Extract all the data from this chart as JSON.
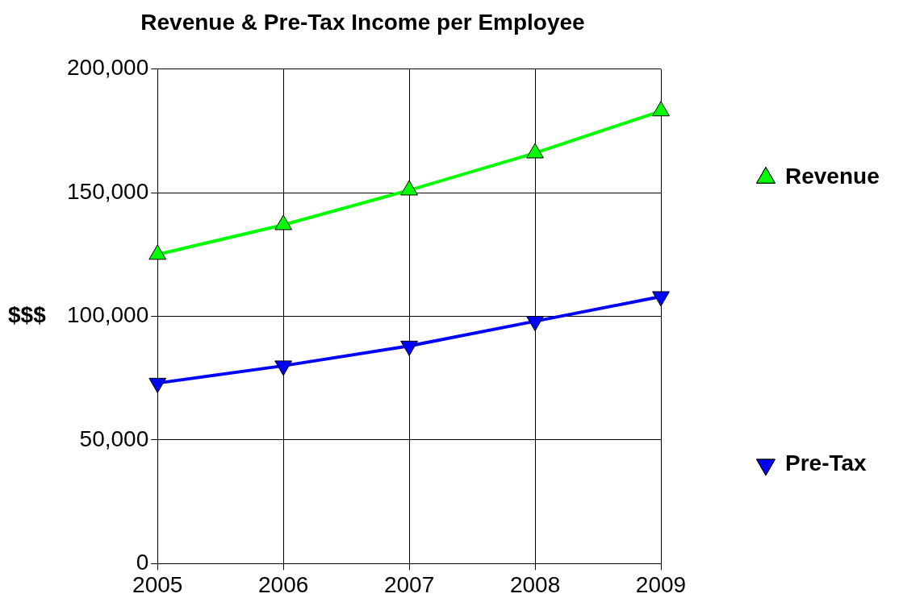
{
  "chart_data": {
    "type": "line",
    "title": "Revenue & Pre-Tax Income per Employee",
    "ylabel": "$$$",
    "x": [
      2005,
      2006,
      2007,
      2008,
      2009
    ],
    "series": [
      {
        "name": "Revenue",
        "color": "#00ff00",
        "marker": "triangle",
        "values": [
          125000,
          137000,
          151000,
          166000,
          183000
        ]
      },
      {
        "name": "Pre-Tax",
        "color": "#0000ff",
        "marker": "triangle-down",
        "values": [
          73000,
          80000,
          88000,
          98000,
          108000
        ]
      }
    ],
    "xlim": [
      2005,
      2009
    ],
    "xticks": [
      2005,
      2006,
      2007,
      2008,
      2009
    ],
    "ylim": [
      0,
      200000
    ],
    "yticks": [
      0,
      {
        "value": 50000,
        "label": "50,000"
      },
      {
        "value": 100000,
        "label": "100,000"
      },
      {
        "value": 150000,
        "label": "150,000"
      },
      {
        "value": 200000,
        "label": "200,000"
      }
    ],
    "grid": true,
    "legend": "right"
  }
}
